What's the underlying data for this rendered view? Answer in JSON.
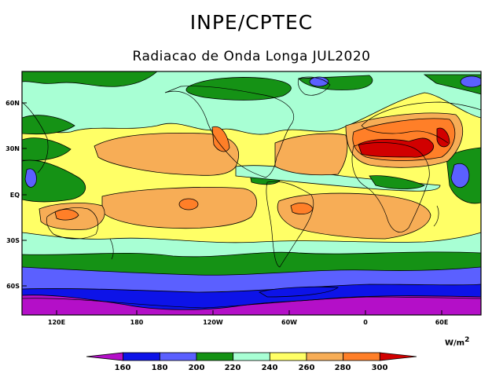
{
  "header": {
    "title": "INPE/CPTEC",
    "subtitle": "Radiacao de Onda Longa JUL2020"
  },
  "map": {
    "x_ticks": [
      "120E",
      "180",
      "120W",
      "60W",
      "0",
      "60E"
    ],
    "y_ticks": [
      "60N",
      "30N",
      "EQ",
      "30S",
      "60S"
    ]
  },
  "colorbar": {
    "labels": [
      "160",
      "180",
      "200",
      "220",
      "240",
      "260",
      "280",
      "300"
    ],
    "colors": [
      "#b40fc8",
      "#0d13e8",
      "#5b60ff",
      "#159215",
      "#a8ffd4",
      "#ffff66",
      "#f7ad56",
      "#ff7f28",
      "#d10000"
    ],
    "units_base": "W/m",
    "units_exp": "2"
  }
}
